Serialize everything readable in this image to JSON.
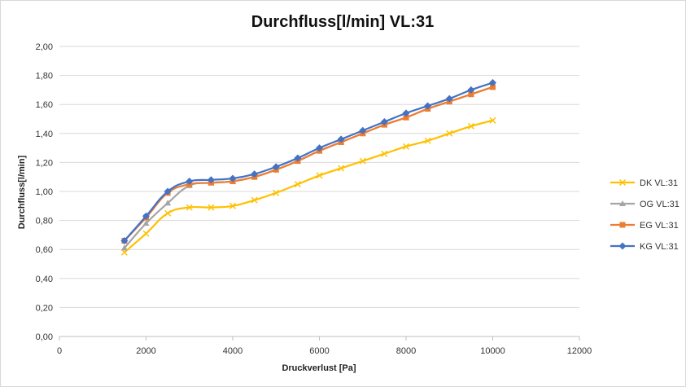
{
  "chart_data": {
    "type": "line",
    "title": "Durchfluss[l/min] VL:31",
    "xlabel": "Druckverlust [Pa]",
    "ylabel": "Durchfluss[l/min]",
    "xlim": [
      0,
      12000
    ],
    "ylim": [
      0,
      2.0
    ],
    "x_ticks": [
      "0",
      "2000",
      "4000",
      "6000",
      "8000",
      "10000",
      "12000"
    ],
    "y_ticks": [
      "0,00",
      "0,20",
      "0,40",
      "0,60",
      "0,80",
      "1,00",
      "1,20",
      "1,40",
      "1,60",
      "1,80",
      "2,00"
    ],
    "grid": "horizontal",
    "legend_position": "right",
    "x": [
      1500,
      2000,
      2500,
      3000,
      3500,
      4000,
      4500,
      5000,
      5500,
      6000,
      6500,
      7000,
      7500,
      8000,
      8500,
      9000,
      9500,
      10000
    ],
    "series": [
      {
        "name": "DK VL:31",
        "color": "#FFC000",
        "marker": "x",
        "values": [
          0.58,
          0.71,
          0.85,
          0.89,
          0.89,
          0.9,
          0.94,
          0.99,
          1.05,
          1.11,
          1.16,
          1.21,
          1.26,
          1.31,
          1.35,
          1.4,
          1.45,
          1.49
        ]
      },
      {
        "name": "OG VL:31",
        "color": "#A5A5A5",
        "marker": "triangle",
        "values": [
          0.61,
          0.78,
          0.92,
          1.04,
          1.06,
          1.07,
          1.1,
          1.15,
          1.21,
          1.28,
          1.34,
          1.4,
          1.46,
          1.51,
          1.57,
          1.62,
          1.67,
          1.72
        ]
      },
      {
        "name": "EG VL:31",
        "color": "#ED7D31",
        "marker": "square",
        "values": [
          0.66,
          0.82,
          0.99,
          1.05,
          1.06,
          1.07,
          1.1,
          1.15,
          1.21,
          1.28,
          1.34,
          1.4,
          1.46,
          1.51,
          1.57,
          1.62,
          1.67,
          1.72
        ]
      },
      {
        "name": "KG VL:31",
        "color": "#4472C4",
        "marker": "diamond",
        "values": [
          0.66,
          0.83,
          1.0,
          1.07,
          1.08,
          1.09,
          1.12,
          1.17,
          1.23,
          1.3,
          1.36,
          1.42,
          1.48,
          1.54,
          1.59,
          1.64,
          1.7,
          1.75
        ]
      }
    ]
  }
}
